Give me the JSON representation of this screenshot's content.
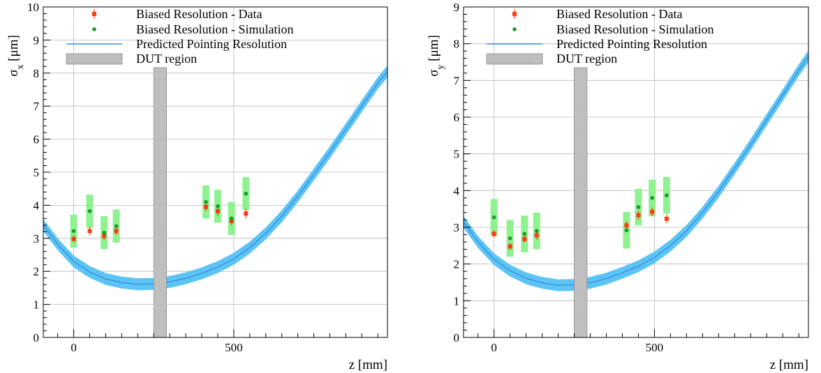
{
  "chart_data": [
    {
      "type": "scatter",
      "ylabel": "σ_x [μm]",
      "ylabel_main": "σ",
      "ylabel_sub": "x",
      "ylabel_unit": " [μm]",
      "xlabel": "z [mm]",
      "xlim": [
        -95,
        980
      ],
      "ylim": [
        0,
        10
      ],
      "xticks": [
        0,
        500
      ],
      "yticks": [
        0,
        1,
        2,
        3,
        4,
        5,
        6,
        7,
        8,
        9,
        10
      ],
      "grid": true,
      "legend_position": "top-left",
      "legend": {
        "data": "Biased Resolution - Data",
        "sim": "Biased Resolution - Simulation",
        "pred": "Predicted Pointing Resolution",
        "dut": "DUT region"
      },
      "dut_region": [
        250,
        290
      ],
      "data_series": {
        "x": [
          0,
          50,
          95,
          133,
          413,
          450,
          493,
          538
        ],
        "y": [
          2.98,
          3.22,
          3.07,
          3.22,
          3.95,
          3.82,
          3.52,
          3.75
        ],
        "err": [
          0.12,
          0.13,
          0.12,
          0.12,
          0.13,
          0.15,
          0.13,
          0.15
        ]
      },
      "sim_series": {
        "x": [
          0,
          50,
          95,
          133,
          413,
          450,
          493,
          538
        ],
        "y": [
          3.22,
          3.82,
          3.17,
          3.37,
          4.1,
          3.97,
          3.6,
          4.35
        ],
        "band_low": [
          2.72,
          3.32,
          2.67,
          2.87,
          3.6,
          3.47,
          3.1,
          3.85
        ],
        "band_high": [
          3.72,
          4.32,
          3.67,
          3.87,
          4.6,
          4.47,
          4.1,
          4.85
        ]
      },
      "prediction": {
        "x": [
          -95,
          -50,
          0,
          50,
          100,
          150,
          200,
          250,
          300,
          350,
          400,
          450,
          500,
          550,
          600,
          650,
          700,
          750,
          800,
          850,
          900,
          950,
          980
        ],
        "y": [
          3.4,
          2.82,
          2.3,
          1.98,
          1.77,
          1.66,
          1.61,
          1.62,
          1.68,
          1.79,
          1.94,
          2.13,
          2.38,
          2.72,
          3.15,
          3.67,
          4.27,
          4.93,
          5.6,
          6.3,
          7.0,
          7.7,
          8.05
        ],
        "half_width": 0.18
      }
    },
    {
      "type": "scatter",
      "ylabel": "σ_y [μm]",
      "ylabel_main": "σ",
      "ylabel_sub": "y",
      "ylabel_unit": " [μm]",
      "xlabel": "z [mm]",
      "xlim": [
        -95,
        980
      ],
      "ylim": [
        0,
        9
      ],
      "xticks": [
        0,
        500
      ],
      "yticks": [
        0,
        1,
        2,
        3,
        4,
        5,
        6,
        7,
        8,
        9
      ],
      "grid": true,
      "legend_position": "top-left",
      "legend": {
        "data": "Biased Resolution - Data",
        "sim": "Biased Resolution - Simulation",
        "pred": "Predicted Pointing Resolution",
        "dut": "DUT region"
      },
      "dut_region": [
        250,
        290
      ],
      "data_series": {
        "x": [
          0,
          50,
          95,
          133,
          413,
          450,
          493,
          538
        ],
        "y": [
          2.82,
          2.48,
          2.68,
          2.78,
          3.05,
          3.33,
          3.42,
          3.23
        ],
        "err": [
          0.1,
          0.1,
          0.1,
          0.12,
          0.12,
          0.12,
          0.12,
          0.12
        ]
      },
      "sim_series": {
        "x": [
          0,
          50,
          95,
          133,
          413,
          450,
          493,
          538
        ],
        "y": [
          3.27,
          2.7,
          2.82,
          2.9,
          2.92,
          3.55,
          3.8,
          3.87
        ],
        "band_low": [
          2.77,
          2.2,
          2.32,
          2.4,
          2.42,
          3.05,
          3.3,
          3.37
        ],
        "band_high": [
          3.77,
          3.2,
          3.32,
          3.4,
          3.42,
          4.05,
          4.3,
          4.37
        ]
      },
      "prediction": {
        "x": [
          -95,
          -50,
          0,
          50,
          100,
          150,
          200,
          250,
          300,
          350,
          400,
          450,
          500,
          550,
          600,
          650,
          700,
          750,
          800,
          850,
          900,
          950,
          980
        ],
        "y": [
          3.15,
          2.6,
          2.13,
          1.82,
          1.61,
          1.49,
          1.42,
          1.43,
          1.49,
          1.6,
          1.76,
          1.94,
          2.18,
          2.5,
          2.9,
          3.4,
          3.97,
          4.6,
          5.25,
          5.93,
          6.6,
          7.28,
          7.65
        ],
        "half_width": 0.16
      }
    }
  ]
}
